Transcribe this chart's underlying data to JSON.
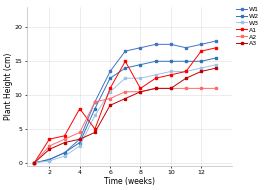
{
  "title": "",
  "xlabel": "Time (weeks)",
  "ylabel": "Plant Height (cm)",
  "series": [
    {
      "label": "W1",
      "color": "#4472C4",
      "marker": "s",
      "x": [
        1,
        2,
        3,
        4,
        5,
        6,
        7,
        8,
        9,
        10,
        11,
        12,
        13
      ],
      "y": [
        0,
        0.5,
        1.5,
        3.5,
        9.0,
        13.5,
        16.5,
        17.0,
        17.5,
        17.5,
        17.0,
        17.5,
        18.0
      ]
    },
    {
      "label": "W2",
      "color": "#2E75B6",
      "marker": "s",
      "x": [
        1,
        2,
        3,
        4,
        5,
        6,
        7,
        8,
        9,
        10,
        11,
        12,
        13
      ],
      "y": [
        0,
        0.5,
        1.5,
        3.0,
        8.0,
        12.5,
        14.0,
        14.5,
        15.0,
        15.0,
        15.0,
        15.0,
        15.5
      ]
    },
    {
      "label": "W3",
      "color": "#9DC3E6",
      "marker": "s",
      "x": [
        1,
        2,
        3,
        4,
        5,
        6,
        7,
        8,
        9,
        10,
        11,
        12,
        13
      ],
      "y": [
        0,
        0.3,
        1.0,
        2.5,
        7.0,
        10.5,
        12.5,
        12.5,
        13.0,
        13.5,
        13.5,
        14.0,
        14.5
      ]
    },
    {
      "label": "A1",
      "color": "#FF0000",
      "marker": "s",
      "x": [
        1,
        2,
        3,
        4,
        5,
        6,
        7,
        8,
        9,
        10,
        11,
        12,
        13
      ],
      "y": [
        0,
        3.5,
        4.0,
        8.0,
        5.0,
        11.0,
        15.0,
        11.0,
        12.5,
        13.0,
        13.5,
        16.5,
        17.0
      ]
    },
    {
      "label": "A2",
      "color": "#FF6B6B",
      "marker": "s",
      "x": [
        1,
        2,
        3,
        4,
        5,
        6,
        7,
        8,
        9,
        10,
        11,
        12,
        13
      ],
      "y": [
        0,
        2.5,
        3.5,
        4.5,
        9.0,
        9.5,
        10.5,
        10.5,
        11.0,
        11.0,
        11.0,
        11.0,
        11.0
      ]
    },
    {
      "label": "A3",
      "color": "#C00000",
      "marker": "s",
      "x": [
        1,
        2,
        3,
        4,
        5,
        6,
        7,
        8,
        9,
        10,
        11,
        12,
        13
      ],
      "y": [
        0,
        2.0,
        3.0,
        3.5,
        4.5,
        8.5,
        9.5,
        10.5,
        11.0,
        11.0,
        12.5,
        13.5,
        14.0
      ]
    }
  ],
  "xlim": [
    0.5,
    14.0
  ],
  "ylim": [
    -0.5,
    23
  ],
  "xticks": [
    2,
    4,
    6,
    8,
    10,
    12
  ],
  "yticks": [
    0,
    5,
    10,
    15,
    20
  ],
  "grid": true,
  "background_color": "#ffffff",
  "legend_fontsize": 4.5,
  "axis_fontsize": 5.5,
  "tick_fontsize": 4.5,
  "linewidth": 0.7,
  "markersize": 1.8
}
